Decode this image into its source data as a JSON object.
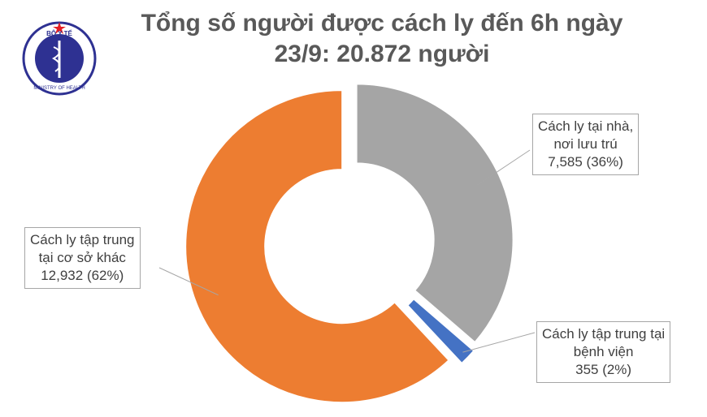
{
  "logo": {
    "top_text": "BỘ Y TẾ",
    "bottom_text": "MINISTRY OF HEALTH"
  },
  "chart_data": {
    "type": "donut",
    "title": [
      "Tổng số người được cách ly đến 6h ngày",
      "23/9: 20.872 người"
    ],
    "categories": [
      "Cách ly tại nhà,\nnơi lưu trú",
      "Cách ly tập trung tại\nbệnh viện",
      "Cách ly tập trung\ntại cơ sở khác"
    ],
    "values": [
      7585,
      355,
      12932
    ],
    "value_labels": [
      "7,585 (36%)",
      "355 (2%)",
      "12,932 (62%)"
    ],
    "colors": [
      "#a5a5a5",
      "#4472c4",
      "#ed7d31"
    ]
  }
}
